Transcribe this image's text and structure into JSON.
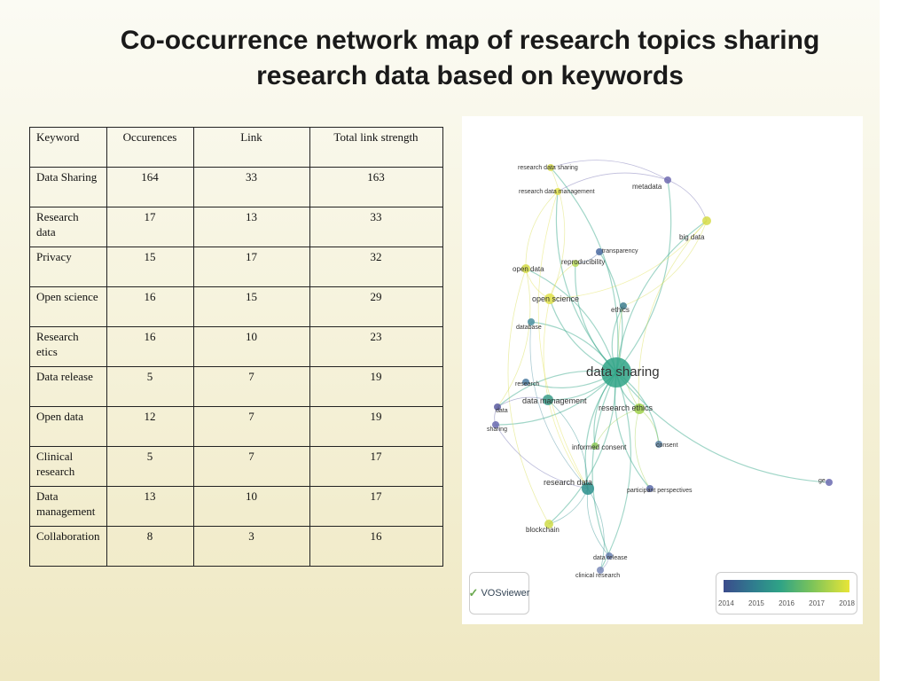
{
  "title": {
    "line1": "Co-occurrence network map of research topics sharing",
    "line2": "research data based on keywords"
  },
  "table": {
    "headers": [
      "Keyword",
      "Occurences",
      "Link",
      "Total link strength"
    ],
    "rows": [
      {
        "keyword": "Data Sharing",
        "occurences": "164",
        "link": "33",
        "strength": "163"
      },
      {
        "keyword": "Research data",
        "occurences": "17",
        "link": "13",
        "strength": "33"
      },
      {
        "keyword": "Privacy",
        "occurences": "15",
        "link": "17",
        "strength": "32"
      },
      {
        "keyword": "Open science",
        "occurences": "16",
        "link": "15",
        "strength": "29"
      },
      {
        "keyword": "Research etics",
        "occurences": "16",
        "link": "10",
        "strength": "23"
      },
      {
        "keyword": "Data release",
        "occurences": "5",
        "link": "7",
        "strength": "19"
      },
      {
        "keyword": "Open data",
        "occurences": "12",
        "link": "7",
        "strength": "19"
      },
      {
        "keyword": "Clinical research",
        "occurences": "5",
        "link": "7",
        "strength": "17"
      },
      {
        "keyword": "Data management",
        "occurences": "13",
        "link": "10",
        "strength": "17"
      },
      {
        "keyword": "Collaboration",
        "occurences": "8",
        "link": "3",
        "strength": "16"
      }
    ]
  },
  "network": {
    "nodes": [
      {
        "id": "data_sharing",
        "label": "data sharing",
        "color": "#2fa386"
      },
      {
        "id": "research_ethics",
        "label": "research ethics",
        "color": "#9fd04a"
      },
      {
        "id": "data_management",
        "label": "data management",
        "color": "#3a9c8a"
      },
      {
        "id": "research_data",
        "label": "research data",
        "color": "#2a8f8c"
      },
      {
        "id": "open_science",
        "label": "open science",
        "color": "#dfe14a"
      },
      {
        "id": "open_data",
        "label": "open data",
        "color": "#d4db45"
      },
      {
        "id": "ethics",
        "label": "ethics",
        "color": "#3d7d8e"
      },
      {
        "id": "metadata",
        "label": "metadata",
        "color": "#6e6ab0"
      },
      {
        "id": "big_data",
        "label": "big data",
        "color": "#d6dc48"
      },
      {
        "id": "transparency",
        "label": "transparency",
        "color": "#4a6aa0"
      },
      {
        "id": "reproducibility",
        "label": "reproducibility",
        "color": "#b7d95a"
      },
      {
        "id": "database",
        "label": "database",
        "color": "#4a8fa0"
      },
      {
        "id": "research",
        "label": "research",
        "color": "#4a7aa0"
      },
      {
        "id": "data",
        "label": "data",
        "color": "#5a5aa0"
      },
      {
        "id": "sharing",
        "label": "sharing",
        "color": "#6a6ab0"
      },
      {
        "id": "informed_consent",
        "label": "informed consent",
        "color": "#8fca5a"
      },
      {
        "id": "consent",
        "label": "consent",
        "color": "#5a80a0"
      },
      {
        "id": "participant_perspectives",
        "label": "participant perspectives",
        "color": "#5a6aa8"
      },
      {
        "id": "blockchain",
        "label": "blockchain",
        "color": "#cfdc4a"
      },
      {
        "id": "data_release",
        "label": "data release",
        "color": "#6a80b0"
      },
      {
        "id": "clinical_research",
        "label": "clinical research",
        "color": "#7a8ab8"
      },
      {
        "id": "research_data_sharing",
        "label": "research data sharing",
        "color": "#d8dc52"
      },
      {
        "id": "research_data_management",
        "label": "research data management",
        "color": "#e0e04a"
      },
      {
        "id": "ge",
        "label": "ge",
        "color": "#6a6ab0"
      }
    ]
  },
  "vosviewer": {
    "logo_text": "VOSviewer",
    "color_scale_ticks": [
      "2014",
      "2015",
      "2016",
      "2017",
      "2018"
    ]
  }
}
